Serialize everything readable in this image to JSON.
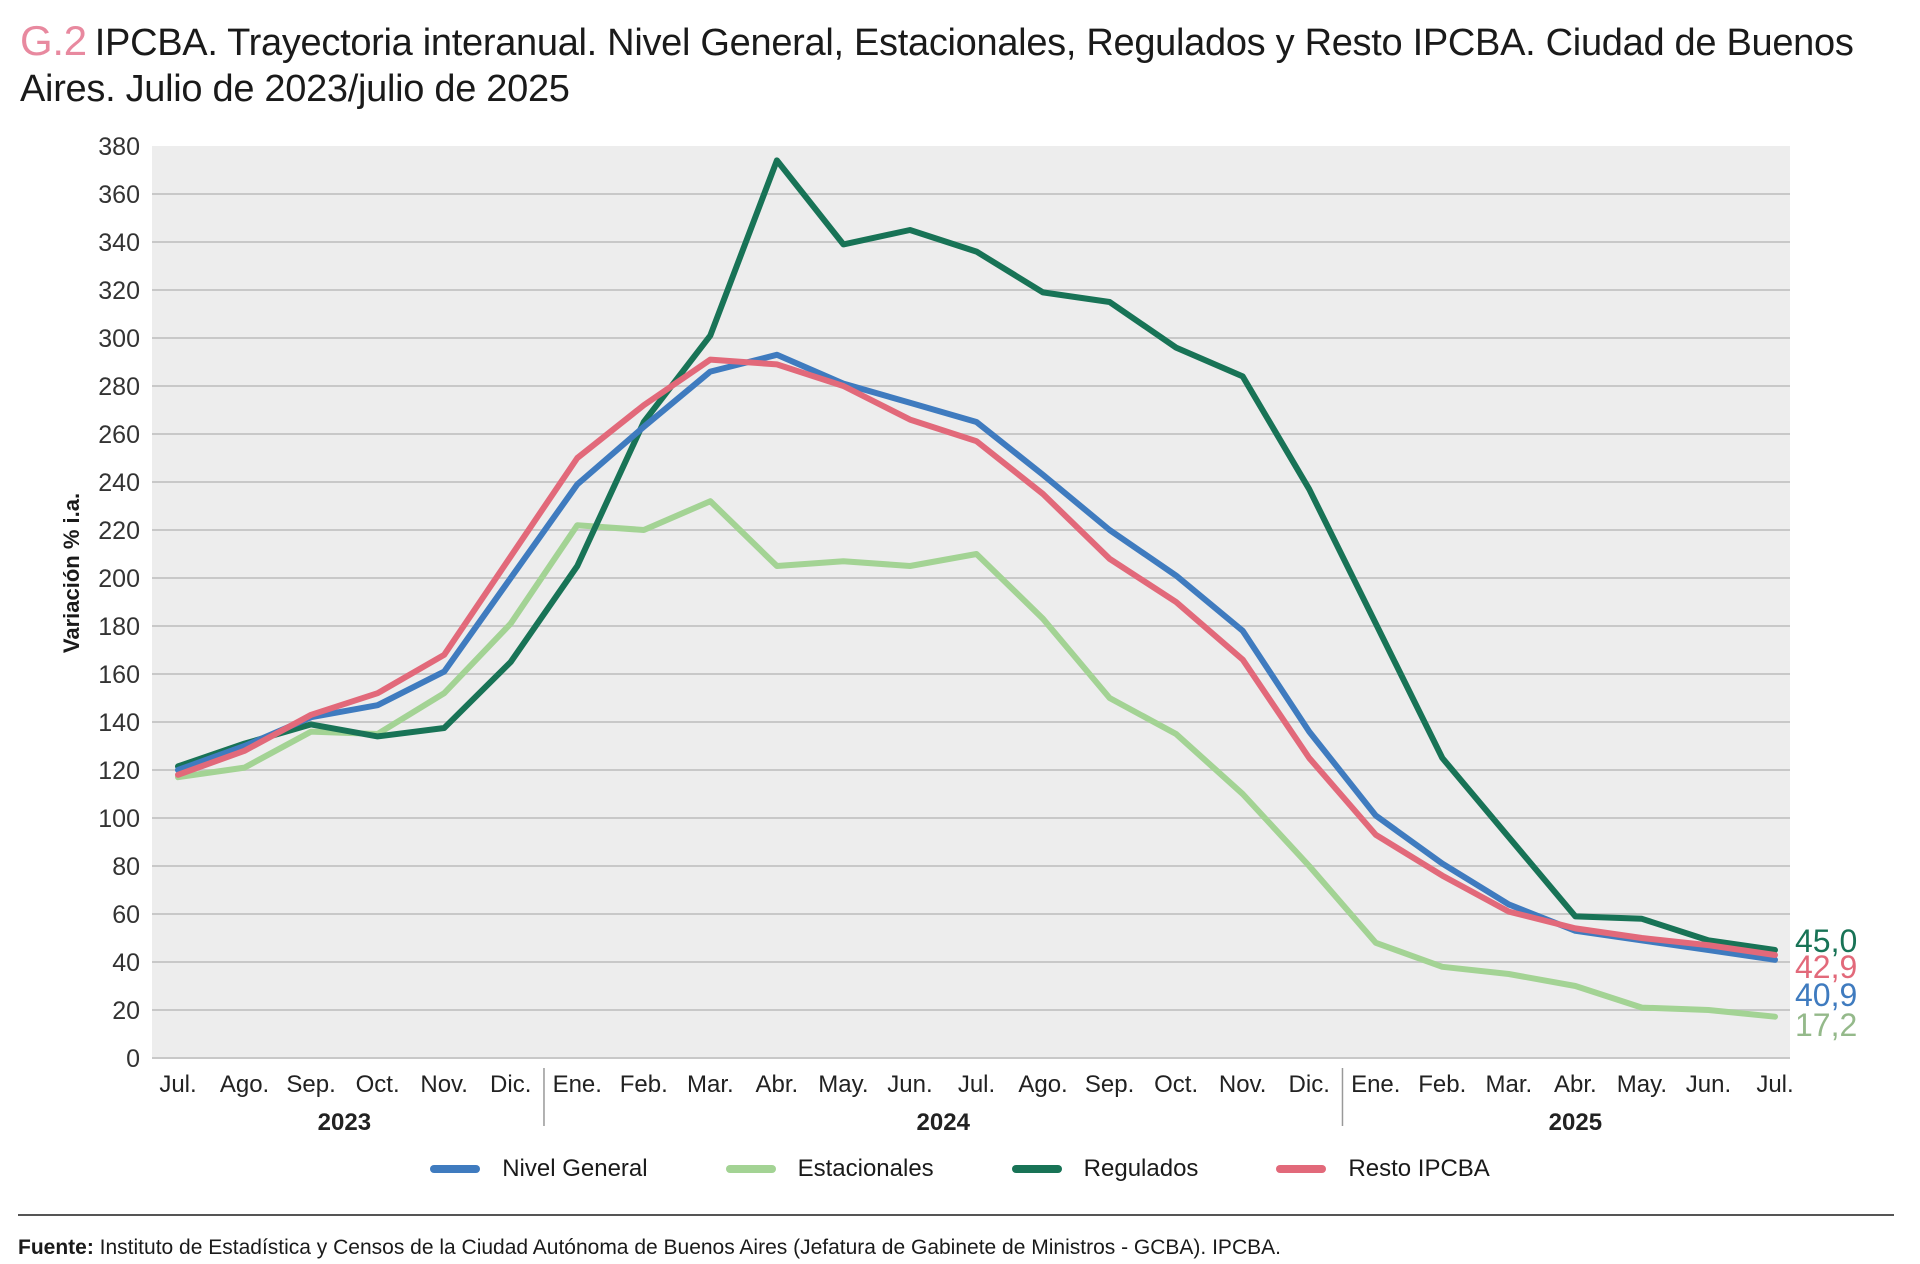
{
  "header": {
    "code": "G.2",
    "title": "IPCBA. Trayectoria interanual. Nivel General, Estacionales, Regulados y Resto IPCBA. Ciudad de Buenos Aires. Julio de 2023/julio de 2025"
  },
  "footer": {
    "source_label": "Fuente:",
    "source_text": "Instituto de Estadística y Censos de la Ciudad Autónoma de Buenos Aires (Jefatura de Gabinete de Ministros - GCBA). IPCBA."
  },
  "chart_data": {
    "type": "line",
    "title": "IPCBA. Trayectoria interanual. Nivel General, Estacionales, Regulados y Resto IPCBA. Ciudad de Buenos Aires. Julio de 2023/julio de 2025",
    "xlabel": "",
    "ylabel": "Variación % i.a.",
    "ylim": [
      0,
      380
    ],
    "yticks": [
      0,
      20,
      40,
      60,
      80,
      100,
      120,
      140,
      160,
      180,
      200,
      220,
      240,
      260,
      280,
      300,
      320,
      340,
      360,
      380
    ],
    "grid": true,
    "legend_position": "bottom",
    "categories": [
      "Jul.",
      "Ago.",
      "Sep.",
      "Oct.",
      "Nov.",
      "Dic.",
      "Ene.",
      "Feb.",
      "Mar.",
      "Abr.",
      "May.",
      "Jun.",
      "Jul.",
      "Ago.",
      "Sep.",
      "Oct.",
      "Nov.",
      "Dic.",
      "Ene.",
      "Feb.",
      "Mar.",
      "Abr.",
      "May.",
      "Jun.",
      "Jul."
    ],
    "year_groups": [
      {
        "label": "2023",
        "start": 0,
        "end": 5
      },
      {
        "label": "2024",
        "start": 6,
        "end": 17
      },
      {
        "label": "2025",
        "start": 18,
        "end": 24
      }
    ],
    "series": [
      {
        "name": "Nivel General",
        "color": "#3f7bbf",
        "end_label": "40,9",
        "values": [
          120,
          130,
          142,
          147,
          161,
          200,
          239,
          263,
          286,
          293,
          281,
          273,
          265,
          243,
          220,
          201,
          178,
          136,
          101,
          81,
          64,
          53,
          49,
          45,
          40.9
        ]
      },
      {
        "name": "Estacionales",
        "color": "#a3d394",
        "end_label": "17,2",
        "label_color": "#94b98a",
        "values": [
          117,
          121,
          136,
          135,
          152,
          181,
          222,
          220,
          232,
          205,
          207,
          205,
          210,
          183,
          150,
          135,
          110,
          80,
          48,
          38,
          35,
          30,
          21,
          20,
          17.2
        ]
      },
      {
        "name": "Regulados",
        "color": "#187356",
        "end_label": "45,0",
        "values": [
          121.5,
          131,
          139,
          134,
          137.5,
          165,
          205,
          265,
          301,
          374,
          339,
          345,
          336,
          319,
          315,
          296,
          284,
          237,
          181,
          125,
          92,
          59,
          58,
          49,
          45.0
        ]
      },
      {
        "name": "Resto IPCBA",
        "color": "#e2697a",
        "end_label": "42,9",
        "values": [
          118,
          128,
          143,
          152,
          168,
          209,
          250,
          272,
          291,
          289,
          280,
          266,
          257,
          235,
          208,
          190,
          166,
          125,
          93,
          76,
          61,
          54,
          50,
          47,
          42.9
        ]
      }
    ]
  }
}
